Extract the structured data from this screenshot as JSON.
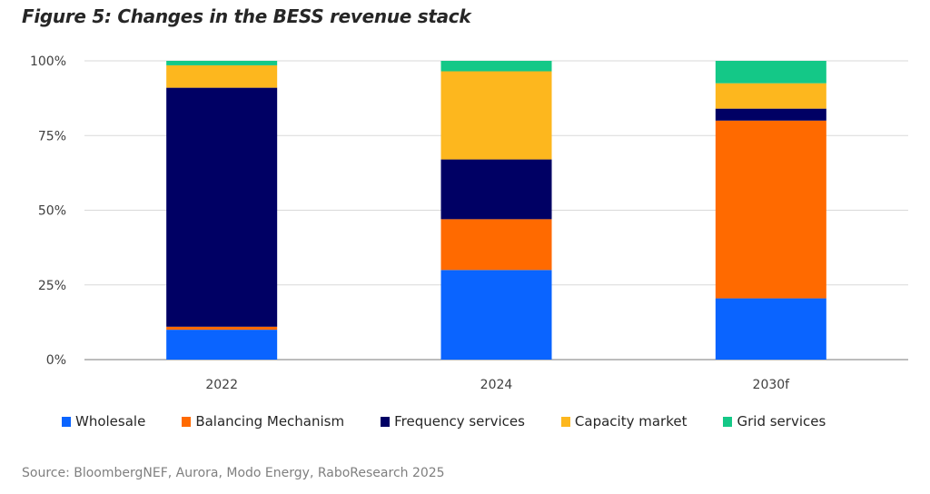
{
  "figure": {
    "title": "Figure 5: Changes in the BESS revenue stack",
    "source": "Source: BloombergNEF, Aurora, Modo Energy, RaboResearch 2025"
  },
  "chart_data": {
    "type": "bar",
    "stacked": true,
    "title": "Figure 5: Changes in the BESS revenue stack",
    "xlabel": "",
    "ylabel": "",
    "ylim": [
      0,
      100
    ],
    "y_ticks": [
      "0%",
      "25%",
      "50%",
      "75%",
      "100%"
    ],
    "y_tick_values": [
      0,
      25,
      50,
      75,
      100
    ],
    "grid": true,
    "legend_position": "bottom",
    "categories": [
      "2022",
      "2024",
      "2030f"
    ],
    "series": [
      {
        "name": "Wholesale",
        "color": "#0A64FF",
        "values": [
          10,
          30,
          20.5
        ]
      },
      {
        "name": "Balancing Mechanism",
        "color": "#FF6A00",
        "values": [
          1,
          17,
          59.5
        ]
      },
      {
        "name": "Frequency services",
        "color": "#000064",
        "values": [
          80,
          20,
          4
        ]
      },
      {
        "name": "Capacity market",
        "color": "#FDB71E",
        "values": [
          7.5,
          29.5,
          8.5
        ]
      },
      {
        "name": "Grid services",
        "color": "#14C887",
        "values": [
          1.5,
          3.5,
          7.5
        ]
      }
    ]
  }
}
